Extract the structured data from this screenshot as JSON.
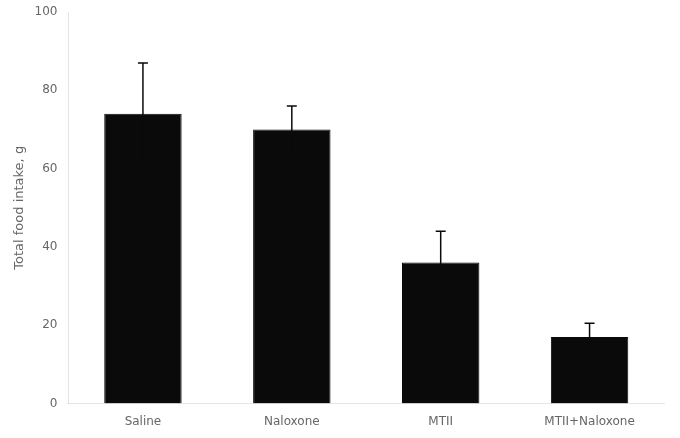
{
  "chart_data": {
    "type": "bar",
    "categories": [
      "Saline",
      "Naloxone",
      "MTII",
      "MTII+Naloxone"
    ],
    "values": [
      74.0,
      70.0,
      36.0,
      17.0
    ],
    "errors": [
      13.0,
      6.0,
      8.0,
      3.5
    ],
    "color": "#0a0a0a",
    "ylabel": "Total food intake, g",
    "ylim": [
      0,
      100
    ],
    "yticks": [
      0,
      20,
      40,
      60,
      80,
      100
    ],
    "grid": false
  }
}
